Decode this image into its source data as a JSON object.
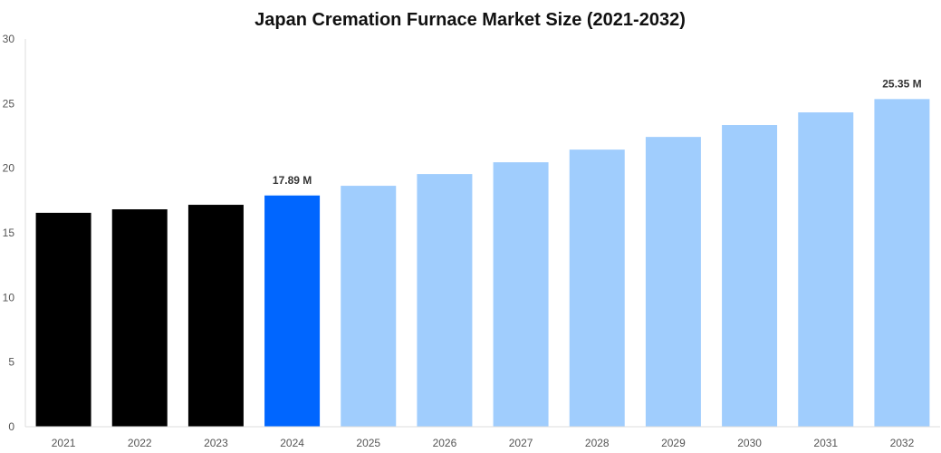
{
  "chart_data": {
    "type": "bar",
    "title": "Japan Cremation Furnace Market Size (2021-2032)",
    "xlabel": "",
    "ylabel": "",
    "ylim": [
      0,
      30
    ],
    "yticks": [
      0,
      5,
      10,
      15,
      20,
      25,
      30
    ],
    "grid": false,
    "categories": [
      "2021",
      "2022",
      "2023",
      "2024",
      "2025",
      "2026",
      "2027",
      "2028",
      "2029",
      "2030",
      "2031",
      "2032"
    ],
    "values": [
      16.55,
      16.82,
      17.17,
      17.89,
      18.64,
      19.55,
      20.46,
      21.44,
      22.42,
      23.34,
      24.32,
      25.35
    ],
    "data_labels": {
      "2024": "17.89 M",
      "2032": "25.35 M"
    },
    "colors": {
      "historical": "#000000",
      "current": "#0066ff",
      "forecast": "#a0cdfd",
      "axis": "#dddddd"
    },
    "bar_color_groups": [
      "historical",
      "historical",
      "historical",
      "current",
      "forecast",
      "forecast",
      "forecast",
      "forecast",
      "forecast",
      "forecast",
      "forecast",
      "forecast"
    ]
  }
}
